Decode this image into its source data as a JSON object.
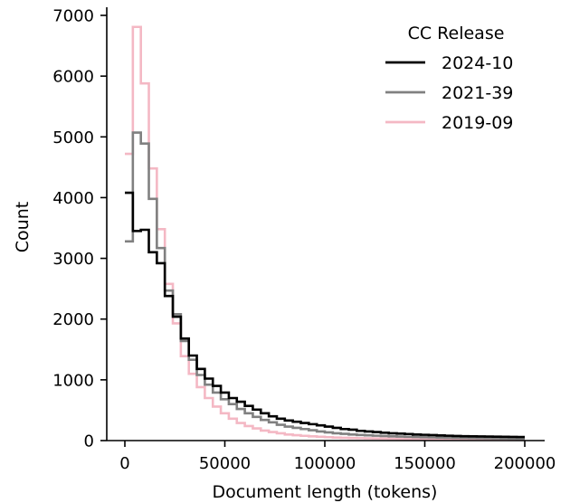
{
  "chart_data": {
    "type": "histogram",
    "title": "",
    "xlabel": "Document length (tokens)",
    "ylabel": "Count",
    "xlim": [
      0,
      200000
    ],
    "ylim": [
      0,
      7000
    ],
    "xticks": [
      0,
      50000,
      100000,
      150000,
      200000
    ],
    "yticks": [
      0,
      1000,
      2000,
      3000,
      4000,
      5000,
      6000,
      7000
    ],
    "grid": false,
    "legend": {
      "title": "CC Release",
      "placement": "top-right"
    },
    "bin_edges": [
      0,
      4000,
      8000,
      12000,
      16000,
      20000,
      24000,
      28000,
      32000,
      36000,
      40000,
      44000,
      48000,
      52000,
      56000,
      60000,
      64000,
      68000,
      72000,
      76000,
      80000,
      84000,
      88000,
      92000,
      96000,
      100000,
      104000,
      108000,
      112000,
      116000,
      120000,
      124000,
      128000,
      132000,
      136000,
      140000,
      144000,
      148000,
      152000,
      156000,
      160000,
      164000,
      168000,
      172000,
      176000,
      180000,
      184000,
      188000,
      192000,
      196000,
      200000
    ],
    "series": [
      {
        "name": "2024-10",
        "color": "#000000",
        "values": [
          4080,
          3450,
          3470,
          3100,
          2920,
          2380,
          2040,
          1680,
          1400,
          1180,
          1020,
          900,
          790,
          700,
          640,
          570,
          510,
          450,
          400,
          360,
          330,
          310,
          290,
          270,
          250,
          230,
          210,
          190,
          180,
          160,
          150,
          140,
          130,
          120,
          115,
          108,
          100,
          95,
          90,
          85,
          80,
          75,
          72,
          70,
          68,
          66,
          64,
          62,
          60,
          58
        ]
      },
      {
        "name": "2021-39",
        "color": "#808080",
        "values": [
          3280,
          5070,
          4890,
          3980,
          3170,
          2470,
          2080,
          1640,
          1330,
          1080,
          920,
          790,
          680,
          600,
          520,
          450,
          390,
          340,
          300,
          260,
          230,
          210,
          190,
          170,
          150,
          135,
          120,
          110,
          100,
          92,
          86,
          80,
          75,
          70,
          66,
          62,
          58,
          55,
          52,
          50,
          48,
          46,
          44,
          42,
          40,
          38,
          36,
          34,
          32,
          30
        ]
      },
      {
        "name": "2019-09",
        "color": "#f4b8c4",
        "values": [
          4720,
          6810,
          5880,
          4480,
          3480,
          2580,
          1930,
          1390,
          1100,
          880,
          700,
          560,
          450,
          360,
          290,
          240,
          200,
          165,
          140,
          120,
          100,
          88,
          78,
          70,
          62,
          56,
          50,
          46,
          42,
          39,
          36,
          34,
          32,
          30,
          28,
          26,
          25,
          24,
          23,
          22,
          21,
          20,
          19,
          18,
          17,
          16,
          15,
          14,
          13,
          12
        ]
      }
    ]
  }
}
